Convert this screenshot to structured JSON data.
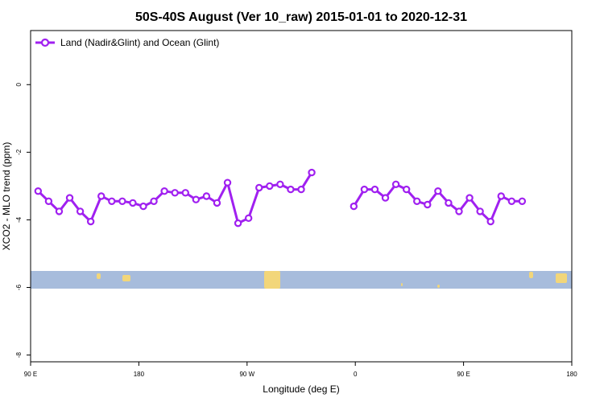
{
  "chart_data": {
    "type": "line",
    "title": "50S-40S August (Ver 10_raw)   2015-01-01 to 2020-12-31",
    "xlabel": "Longitude (deg E)",
    "ylabel": "XCO2 - MLO trend (ppm)",
    "xlim": [
      90,
      450
    ],
    "ylim": [
      -8.2,
      1.6
    ],
    "x_ticks": [
      {
        "value": 90,
        "label": "90 E"
      },
      {
        "value": 162,
        "label": "180"
      },
      {
        "value": 234,
        "label": "90 W"
      },
      {
        "value": 306,
        "label": "0"
      },
      {
        "value": 378,
        "label": "90 E"
      },
      {
        "value": 450,
        "label": "180"
      }
    ],
    "y_ticks": [
      0,
      -2,
      -4,
      -6,
      -8
    ],
    "grid": false,
    "legend_position": "top-left",
    "series": [
      {
        "name": "Land (Nadir&Glint) and Ocean (Glint)",
        "color": "#a020f0",
        "x": [
          95,
          102,
          109,
          116,
          123,
          130,
          137,
          144,
          151,
          158,
          165,
          172,
          179,
          186,
          193,
          200,
          207,
          214,
          221,
          228,
          235,
          242,
          249,
          256,
          263,
          270,
          277,
          284,
          291,
          298,
          305,
          null,
          305,
          312,
          319,
          326,
          333,
          340,
          347,
          354,
          361,
          368,
          375,
          382,
          389,
          396,
          403,
          410,
          417,
          424,
          431,
          438,
          445
        ],
        "y": [
          -3.15,
          -3.45,
          -3.75,
          -3.35,
          -3.75,
          -4.05,
          -3.3,
          -3.45,
          -3.45,
          -3.5,
          -3.6,
          -3.45,
          -3.15,
          -3.2,
          -3.2,
          -3.4,
          -3.3,
          -3.5,
          -2.9,
          -4.1,
          -3.95,
          -3.05,
          -3.0,
          -2.95,
          -3.1,
          -3.1,
          -2.6,
          null,
          null,
          null,
          null,
          null,
          -3.6,
          -3.1,
          -3.1,
          -3.35,
          -2.95,
          -3.1,
          -3.45,
          -3.55,
          -3.15,
          -3.5,
          -3.75,
          -3.35,
          -3.75,
          -4.05,
          -3.3,
          -3.45,
          -3.45,
          null,
          null,
          null,
          null
        ]
      }
    ],
    "colors": {
      "ocean_band": "#a7bcdc",
      "land_band": "#f2d67a",
      "series": "#a020f0"
    }
  }
}
